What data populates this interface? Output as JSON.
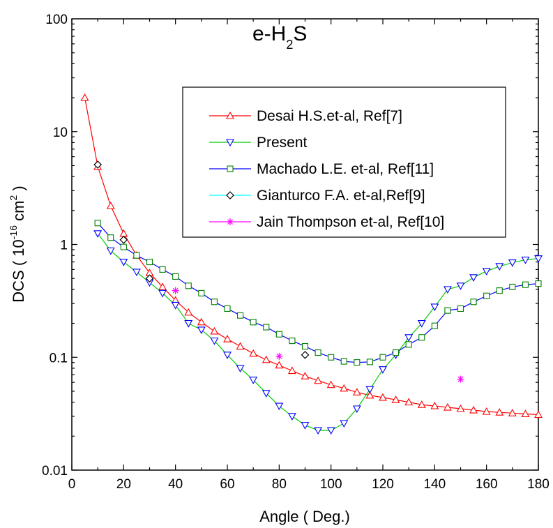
{
  "chart_data": {
    "type": "line",
    "title": "e-H",
    "title_sub": "2",
    "title_tail": "S",
    "xlabel": "Angle ( Deg.)",
    "ylabel": {
      "prefix": "DCS ( 10",
      "exp": "-16",
      "unit": " cm",
      "unit_exp": "2",
      "suffix": " )"
    },
    "xlim": [
      0,
      180
    ],
    "ylim": [
      0.01,
      100
    ],
    "yscale": "log",
    "grid": false,
    "legend_position": "top-right",
    "x_ticks": [
      0,
      20,
      40,
      60,
      80,
      100,
      120,
      140,
      160,
      180
    ],
    "x_tick_labels": [
      "0",
      "20",
      "40",
      "60",
      "80",
      "100",
      "120",
      "140",
      "160",
      "180"
    ],
    "y_ticks": [
      0.01,
      0.1,
      1,
      10,
      100
    ],
    "y_tick_labels": [
      "0.01",
      "0.1",
      "1",
      "10",
      "100"
    ],
    "series": [
      {
        "name": "Desai H.S.et-al, Ref[7]",
        "color": "#ff0000",
        "line_color": "#ff0000",
        "marker": "triangle-up",
        "x": [
          5,
          10,
          15,
          20,
          25,
          30,
          35,
          40,
          45,
          50,
          55,
          60,
          65,
          70,
          75,
          80,
          85,
          90,
          95,
          100,
          105,
          110,
          115,
          120,
          125,
          130,
          135,
          140,
          145,
          150,
          155,
          160,
          165,
          170,
          175,
          180
        ],
        "y": [
          20,
          4.9,
          2.2,
          1.25,
          0.8,
          0.56,
          0.42,
          0.32,
          0.25,
          0.205,
          0.17,
          0.145,
          0.125,
          0.108,
          0.095,
          0.085,
          0.076,
          0.068,
          0.062,
          0.057,
          0.053,
          0.049,
          0.046,
          0.044,
          0.042,
          0.04,
          0.038,
          0.037,
          0.036,
          0.035,
          0.034,
          0.033,
          0.0325,
          0.032,
          0.0315,
          0.031
        ]
      },
      {
        "name": "Present",
        "color": "#0000ff",
        "line_color": "#00cc00",
        "marker": "triangle-down",
        "x": [
          10,
          15,
          20,
          25,
          30,
          35,
          40,
          45,
          50,
          55,
          60,
          65,
          70,
          75,
          80,
          85,
          90,
          95,
          100,
          105,
          110,
          115,
          120,
          125,
          130,
          135,
          140,
          145,
          150,
          155,
          160,
          165,
          170,
          175,
          180
        ],
        "y": [
          1.25,
          0.88,
          0.7,
          0.57,
          0.46,
          0.37,
          0.29,
          0.2,
          0.175,
          0.14,
          0.105,
          0.08,
          0.063,
          0.048,
          0.037,
          0.03,
          0.025,
          0.0225,
          0.0225,
          0.026,
          0.035,
          0.052,
          0.078,
          0.105,
          0.15,
          0.2,
          0.28,
          0.4,
          0.43,
          0.51,
          0.58,
          0.64,
          0.69,
          0.73,
          0.75
        ]
      },
      {
        "name": "Machado L.E. et-al, Ref[11]",
        "color": "#008000",
        "line_color": "#0000ff",
        "marker": "square",
        "x": [
          10,
          15,
          20,
          25,
          30,
          35,
          40,
          45,
          50,
          55,
          60,
          65,
          70,
          75,
          80,
          85,
          90,
          95,
          100,
          105,
          110,
          115,
          120,
          125,
          130,
          135,
          140,
          145,
          150,
          155,
          160,
          165,
          170,
          175,
          180
        ],
        "y": [
          1.55,
          1.15,
          0.95,
          0.8,
          0.7,
          0.6,
          0.52,
          0.43,
          0.37,
          0.31,
          0.27,
          0.235,
          0.205,
          0.185,
          0.16,
          0.14,
          0.125,
          0.11,
          0.1,
          0.092,
          0.09,
          0.091,
          0.1,
          0.11,
          0.13,
          0.15,
          0.19,
          0.26,
          0.27,
          0.31,
          0.35,
          0.39,
          0.42,
          0.44,
          0.45
        ]
      },
      {
        "name": "Gianturco F.A. et-al,Ref[9]",
        "color": "#000000",
        "line_color": "#00ffff",
        "marker": "diamond",
        "x": [
          10,
          20,
          30,
          90
        ],
        "y": [
          5.1,
          1.1,
          0.5,
          0.105
        ]
      },
      {
        "name": "Jain Thompson et-al, Ref[10]",
        "color": "#ff00ff",
        "line_color": "#ff00ff",
        "marker": "star",
        "x": [
          40,
          80,
          150
        ],
        "y": [
          0.39,
          0.102,
          0.064
        ]
      }
    ]
  }
}
